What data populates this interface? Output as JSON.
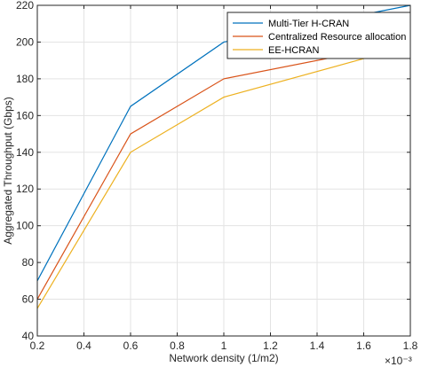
{
  "chart_data": {
    "type": "line",
    "xlabel": "Network density (1/m2)",
    "ylabel": "Aggregated Throughput (Gbps)",
    "x_exponent_label": "×10⁻³",
    "x": [
      0.2,
      0.6,
      1.0,
      1.8
    ],
    "x_ticks": [
      "0.2",
      "0.4",
      "0.6",
      "0.8",
      "1",
      "1.2",
      "1.4",
      "1.6",
      "1.8"
    ],
    "y_ticks": [
      "40",
      "60",
      "80",
      "100",
      "120",
      "140",
      "160",
      "180",
      "200",
      "220"
    ],
    "xlim": [
      0.2,
      1.8
    ],
    "ylim": [
      40,
      220
    ],
    "grid": true,
    "legend_position": "top-right",
    "series": [
      {
        "name": "Multi-Tier H-CRAN",
        "color": "#0072BD",
        "values": [
          70,
          165,
          200,
          220
        ]
      },
      {
        "name": "Centralized Resource allocation",
        "color": "#D95319",
        "values": [
          60,
          150,
          180,
          200
        ]
      },
      {
        "name": "EE-HCRAN",
        "color": "#EDB120",
        "values": [
          55,
          140,
          170,
          198
        ]
      }
    ]
  }
}
